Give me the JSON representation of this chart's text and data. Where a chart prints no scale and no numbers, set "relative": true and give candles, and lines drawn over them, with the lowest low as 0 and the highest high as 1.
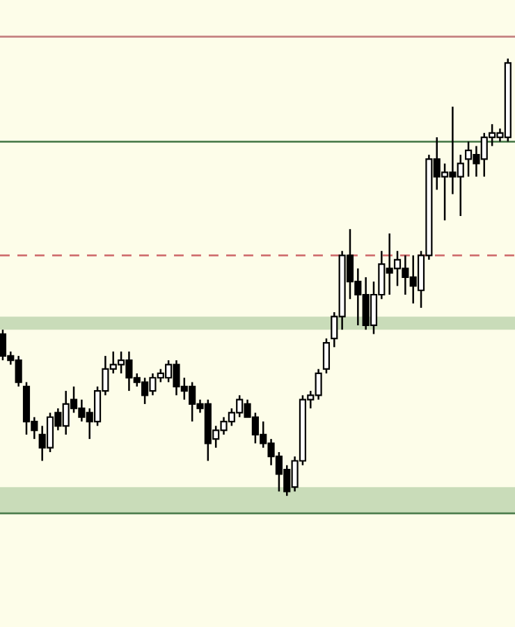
{
  "chart_data": {
    "type": "candlestick",
    "relative": true,
    "categories": [
      null,
      null,
      null,
      null,
      null,
      null,
      null,
      null,
      null,
      null,
      null,
      null,
      null,
      null,
      null,
      null,
      null,
      null,
      null,
      null,
      null,
      null,
      null,
      null,
      null,
      null,
      null,
      null,
      null,
      null,
      null,
      null,
      null,
      null,
      null,
      null,
      null,
      null,
      null,
      null,
      null,
      null,
      null,
      null,
      null,
      null,
      null,
      null,
      null,
      null,
      null,
      null,
      null,
      null,
      null,
      null,
      null,
      null,
      null,
      null,
      null,
      null,
      null,
      null,
      null
    ],
    "ohlc": [
      [
        0.37,
        0.38,
        0.31,
        0.32
      ],
      [
        0.32,
        0.33,
        0.3,
        0.31
      ],
      [
        0.31,
        0.32,
        0.25,
        0.26
      ],
      [
        0.25,
        0.26,
        0.14,
        0.17
      ],
      [
        0.17,
        0.18,
        0.13,
        0.15
      ],
      [
        0.14,
        0.16,
        0.08,
        0.11
      ],
      [
        0.11,
        0.19,
        0.1,
        0.18
      ],
      [
        0.19,
        0.2,
        0.15,
        0.16
      ],
      [
        0.16,
        0.24,
        0.14,
        0.21
      ],
      [
        0.22,
        0.25,
        0.19,
        0.2
      ],
      [
        0.2,
        0.22,
        0.17,
        0.18
      ],
      [
        0.19,
        0.2,
        0.13,
        0.17
      ],
      [
        0.17,
        0.25,
        0.16,
        0.24
      ],
      [
        0.24,
        0.32,
        0.23,
        0.29
      ],
      [
        0.29,
        0.33,
        0.28,
        0.3
      ],
      [
        0.3,
        0.33,
        0.28,
        0.31
      ],
      [
        0.31,
        0.33,
        0.24,
        0.27
      ],
      [
        0.27,
        0.28,
        0.25,
        0.26
      ],
      [
        0.26,
        0.27,
        0.21,
        0.23
      ],
      [
        0.24,
        0.28,
        0.23,
        0.27
      ],
      [
        0.27,
        0.29,
        0.26,
        0.28
      ],
      [
        0.27,
        0.31,
        0.26,
        0.3
      ],
      [
        0.3,
        0.31,
        0.23,
        0.25
      ],
      [
        0.25,
        0.27,
        0.22,
        0.24
      ],
      [
        0.25,
        0.26,
        0.17,
        0.21
      ],
      [
        0.21,
        0.22,
        0.19,
        0.2
      ],
      [
        0.21,
        0.22,
        0.08,
        0.12
      ],
      [
        0.13,
        0.16,
        0.11,
        0.15
      ],
      [
        0.15,
        0.18,
        0.14,
        0.17
      ],
      [
        0.17,
        0.2,
        0.16,
        0.19
      ],
      [
        0.19,
        0.23,
        0.18,
        0.22
      ],
      [
        0.21,
        0.22,
        0.18,
        0.18
      ],
      [
        0.18,
        0.19,
        0.12,
        0.14
      ],
      [
        0.14,
        0.17,
        0.11,
        0.12
      ],
      [
        0.12,
        0.13,
        0.07,
        0.09
      ],
      [
        0.09,
        0.1,
        0.01,
        0.05
      ],
      [
        0.06,
        0.07,
        0,
        0.01
      ],
      [
        0.02,
        0.09,
        0.01,
        0.08
      ],
      [
        0.08,
        0.23,
        0.07,
        0.22
      ],
      [
        0.22,
        0.24,
        0.2,
        0.23
      ],
      [
        0.23,
        0.29,
        0.22,
        0.28
      ],
      [
        0.29,
        0.36,
        0.28,
        0.35
      ],
      [
        0.36,
        0.42,
        0.34,
        0.41
      ],
      [
        0.41,
        0.56,
        0.38,
        0.55
      ],
      [
        0.55,
        0.61,
        0.45,
        0.49
      ],
      [
        0.49,
        0.52,
        0.39,
        0.46
      ],
      [
        0.46,
        0.5,
        0.38,
        0.39
      ],
      [
        0.39,
        0.49,
        0.37,
        0.46
      ],
      [
        0.46,
        0.56,
        0.45,
        0.53
      ],
      [
        0.52,
        0.6,
        0.46,
        0.51
      ],
      [
        0.52,
        0.56,
        0.48,
        0.54
      ],
      [
        0.52,
        0.55,
        0.46,
        0.5
      ],
      [
        0.5,
        0.55,
        0.44,
        0.48
      ],
      [
        0.47,
        0.56,
        0.43,
        0.55
      ],
      [
        0.55,
        0.78,
        0.54,
        0.77
      ],
      [
        0.77,
        0.82,
        0.7,
        0.73
      ],
      [
        0.73,
        0.76,
        0.63,
        0.74
      ],
      [
        0.74,
        0.89,
        0.69,
        0.73
      ],
      [
        0.73,
        0.78,
        0.64,
        0.76
      ],
      [
        0.77,
        0.81,
        0.73,
        0.79
      ],
      [
        0.78,
        0.8,
        0.73,
        0.76
      ],
      [
        0.77,
        0.83,
        0.73,
        0.82
      ],
      [
        0.82,
        0.85,
        0.8,
        0.83
      ],
      [
        0.82,
        0.84,
        0.81,
        0.83
      ],
      [
        0.82,
        1,
        0.81,
        0.99
      ]
    ],
    "ref_lines": [
      {
        "axis": "y",
        "value": 1.05,
        "color": "#c48080",
        "line_style": "solid"
      },
      {
        "axis": "y",
        "value": 0.81,
        "color": "#4f7f4f",
        "line_style": "solid"
      },
      {
        "axis": "y",
        "value": 0.55,
        "color": "#d07070",
        "line_style": "dashed"
      },
      {
        "axis": "y",
        "value": -0.04,
        "color": "#4f7f4f",
        "line_style": "solid"
      }
    ],
    "bands": [
      {
        "axis": "y",
        "from": 0.38,
        "to": 0.41,
        "color": "#c9dcb9"
      },
      {
        "axis": "y",
        "from": -0.04,
        "to": 0.02,
        "color": "#c9dcb9"
      }
    ]
  }
}
